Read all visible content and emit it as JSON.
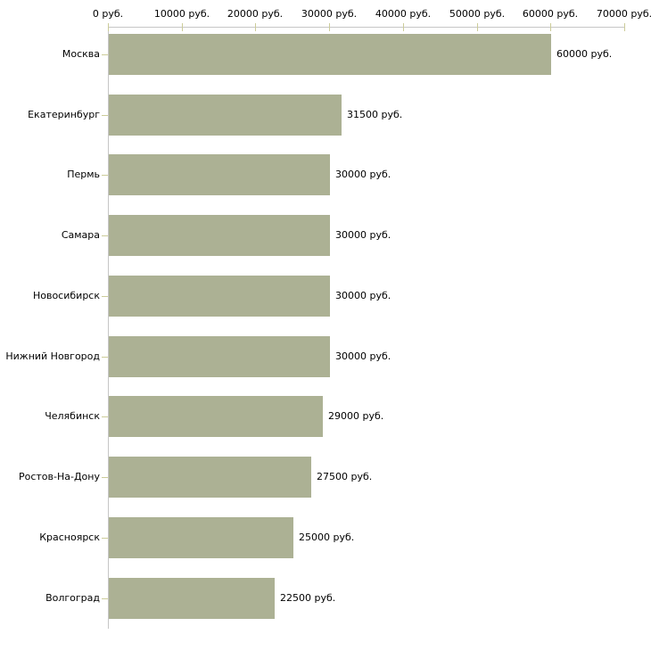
{
  "chart_data": {
    "type": "bar",
    "orientation": "horizontal",
    "title": "",
    "xlabel": "",
    "ylabel": "",
    "unit_suffix": " руб.",
    "categories": [
      "Москва",
      "Екатеринбург",
      "Пермь",
      "Самара",
      "Новосибирск",
      "Нижний Новгород",
      "Челябинск",
      "Ростов-На-Дону",
      "Красноярск",
      "Волгоград"
    ],
    "values": [
      60000,
      31500,
      30000,
      30000,
      30000,
      30000,
      29000,
      27500,
      25000,
      22500
    ],
    "bar_value_labels": [
      "60000 руб.",
      "31500 руб.",
      "30000 руб.",
      "30000 руб.",
      "30000 руб.",
      "30000 руб.",
      "29000 руб.",
      "27500 руб.",
      "25000 руб.",
      "22500 руб."
    ],
    "x_axis": {
      "position": "top",
      "min": 0,
      "max": 70000,
      "tick_step": 10000,
      "ticks": [
        0,
        10000,
        20000,
        30000,
        40000,
        50000,
        60000,
        70000
      ],
      "tick_labels": [
        "0 руб.",
        "10000 руб.",
        "20000 руб.",
        "30000 руб.",
        "40000 руб.",
        "50000 руб.",
        "60000 руб.",
        "70000 руб."
      ]
    },
    "grid": false,
    "legend_position": "none",
    "colors": {
      "bar": "#ACB194",
      "axis_line": "#C6C6C6",
      "tick_mark": "#CCCC99",
      "text": "#000000",
      "background": "#FFFFFF"
    }
  }
}
